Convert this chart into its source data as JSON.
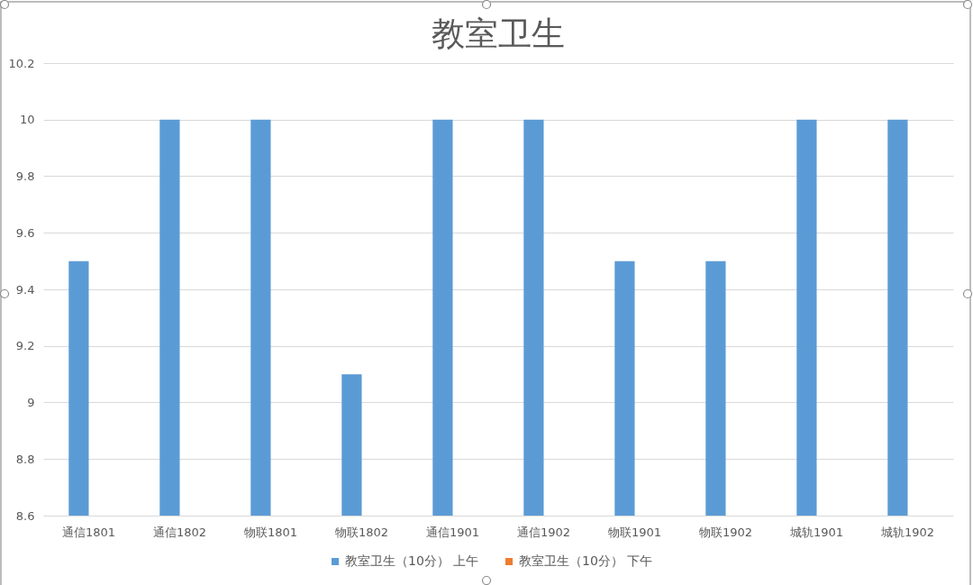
{
  "chart_data": {
    "type": "bar",
    "title": "教室卫生",
    "categories": [
      "通信1801",
      "通信1802",
      "物联1801",
      "物联1802",
      "通信1901",
      "通信1902",
      "物联1901",
      "物联1902",
      "城轨1901",
      "城轨1902"
    ],
    "series": [
      {
        "name": "教室卫生（10分） 上午",
        "color": "#5b9bd5",
        "values": [
          9.5,
          10,
          10,
          9.1,
          10,
          10,
          9.5,
          9.5,
          10,
          10
        ]
      },
      {
        "name": "教室卫生（10分） 下午",
        "color": "#ed7d31",
        "values": [
          null,
          null,
          null,
          null,
          null,
          null,
          null,
          null,
          null,
          null
        ]
      }
    ],
    "ylim": [
      8.6,
      10.2
    ],
    "yticks": [
      8.6,
      8.8,
      9,
      9.2,
      9.4,
      9.6,
      9.8,
      10,
      10.2
    ],
    "grid": true,
    "legend": "bottom"
  }
}
